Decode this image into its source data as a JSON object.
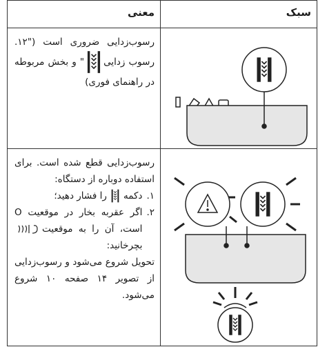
{
  "table": {
    "header": {
      "meaning": "معنی",
      "light": "سبک"
    },
    "rows": [
      {
        "meaning": {
          "before": "رسوب‌زدایی ضروری است (\"۱۲. رسوب زدایی",
          "after": "\" و بخش مربوطه در راهنمای فوری)"
        }
      },
      {
        "meaning": {
          "intro": "رسوب‌زدایی قطع شده است. برای استفاده دوباره از دستگاه:",
          "steps": [
            {
              "number": "۱.",
              "before": "دکمه",
              "after": "را فشار دهید؛"
            },
            {
              "number": "۲.",
              "before": "اگر عقربه بخار در موقعیت O است، آن را به موقعیت",
              "after": "بچرخانید:"
            }
          ],
          "outro": "تحویل شروع می‌شود و رسوب‌زدایی از تصویر ۱۴ صفحه ۱۰ شروع می‌شود."
        }
      }
    ]
  }
}
